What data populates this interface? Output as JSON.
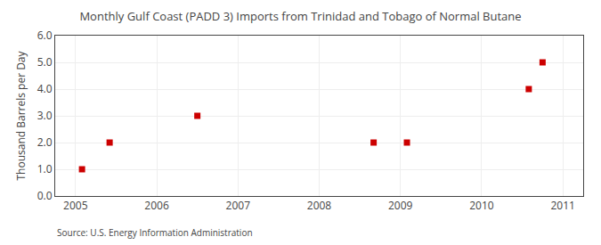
{
  "chart_data": {
    "type": "scatter",
    "title": "Monthly Gulf Coast (PADD 3) Imports from Trinidad and Tobago of Normal Butane",
    "ylabel": "Thousand Barrels per Day",
    "annotations": [
      "Source: U.S. Energy Information Administration"
    ],
    "x": [
      2005.08,
      2005.42,
      2006.5,
      2008.67,
      2009.08,
      2010.58,
      2010.75
    ],
    "values": [
      1.0,
      2.0,
      3.0,
      2.0,
      2.0,
      4.0,
      5.0
    ],
    "color": "#cc0000",
    "marker": "square",
    "xlim": [
      2004.75,
      2011.25
    ],
    "ylim": [
      0.0,
      6.0
    ],
    "xticks": [
      2005,
      2006,
      2007,
      2008,
      2009,
      2010,
      2011
    ],
    "yticks": [
      {
        "value": 0,
        "label": "0.0"
      },
      {
        "value": 1,
        "label": "1.0"
      },
      {
        "value": 2,
        "label": "2.0"
      },
      {
        "value": 3,
        "label": "3.0"
      },
      {
        "value": 4,
        "label": "4.0"
      },
      {
        "value": 5,
        "label": "5.0"
      },
      {
        "value": 6,
        "label": "6.0"
      }
    ],
    "grid": true
  }
}
